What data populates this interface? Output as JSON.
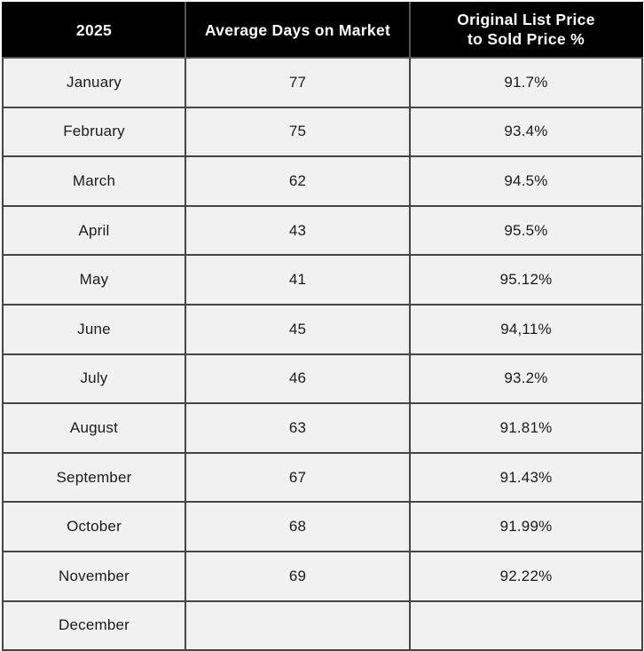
{
  "colors": {
    "header_bg": "#000000",
    "header_text": "#ffffff",
    "header_divider": "#555555",
    "cell_bg": "#f1f1f1",
    "border": "#454545",
    "text": "#1b1b1b"
  },
  "table": {
    "header": {
      "year": "2025",
      "days": "Average Days on Market",
      "ratio": "Original List Price\nto Sold Price %"
    },
    "rows": [
      {
        "month": "January",
        "days": "77",
        "ratio": "91.7%"
      },
      {
        "month": "February",
        "days": "75",
        "ratio": "93.4%"
      },
      {
        "month": "March",
        "days": "62",
        "ratio": "94.5%"
      },
      {
        "month": "April",
        "days": "43",
        "ratio": "95.5%"
      },
      {
        "month": "May",
        "days": "41",
        "ratio": "95.12%"
      },
      {
        "month": "June",
        "days": "45",
        "ratio": "94,11%"
      },
      {
        "month": "July",
        "days": "46",
        "ratio": "93.2%"
      },
      {
        "month": "August",
        "days": "63",
        "ratio": "91.81%"
      },
      {
        "month": "September",
        "days": "67",
        "ratio": "91.43%"
      },
      {
        "month": "October",
        "days": "68",
        "ratio": "91.99%"
      },
      {
        "month": "November",
        "days": "69",
        "ratio": "92.22%"
      },
      {
        "month": "December",
        "days": "",
        "ratio": ""
      }
    ]
  },
  "chart_data": {
    "type": "table",
    "title": "2025",
    "columns": [
      "2025",
      "Average Days on Market",
      "Original List Price to Sold Price %"
    ],
    "categories": [
      "January",
      "February",
      "March",
      "April",
      "May",
      "June",
      "July",
      "August",
      "September",
      "October",
      "November",
      "December"
    ],
    "series": [
      {
        "name": "Average Days on Market",
        "values": [
          77,
          75,
          62,
          43,
          41,
          45,
          46,
          63,
          67,
          68,
          69,
          null
        ]
      },
      {
        "name": "Original List Price to Sold Price %",
        "values": [
          91.7,
          93.4,
          94.5,
          95.5,
          95.12,
          94.11,
          93.2,
          91.81,
          91.43,
          91.99,
          92.22,
          null
        ]
      }
    ],
    "legend_position": "none",
    "grid": true
  }
}
